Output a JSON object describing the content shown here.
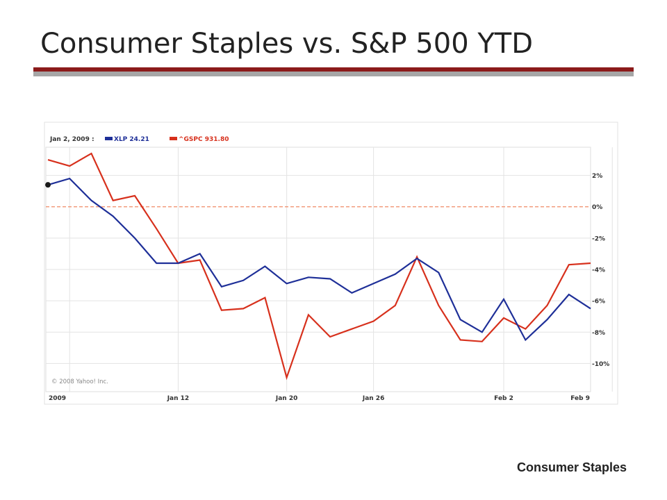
{
  "slide": {
    "title": "Consumer Staples vs. S&P 500 YTD",
    "footer": "Consumer Staples"
  },
  "colors": {
    "xlp": "#1e2f98",
    "gspc": "#d7301c",
    "title_rule": "#8b1a1a",
    "title_rule_shadow": "#a6a6a6",
    "zero_line": "#f08a66"
  },
  "chart_data": {
    "type": "line",
    "legend_date": "Jan 2, 2009 :",
    "legend_position": "top-left",
    "copyright": "© 2008 Yahoo! Inc.",
    "grid": true,
    "ylim": [
      -11.8,
      3.8
    ],
    "yticks": [
      2,
      0,
      -2,
      -4,
      -6,
      -8,
      -10
    ],
    "ytick_labels": [
      "2%",
      "0%",
      "-2%",
      "-4%",
      "-6%",
      "-8%",
      "-10%"
    ],
    "x_tick_labels": [
      {
        "index": 0,
        "label": "2009"
      },
      {
        "index": 6,
        "label": "Jan 12"
      },
      {
        "index": 11,
        "label": "Jan 20"
      },
      {
        "index": 15,
        "label": "Jan 26"
      },
      {
        "index": 21,
        "label": "Feb 2"
      },
      {
        "index": 26,
        "label": "Feb 9"
      }
    ],
    "reference_line": 0,
    "series": [
      {
        "name": "XLP 24.21",
        "values": [
          1.4,
          1.8,
          0.4,
          -0.6,
          -2.0,
          -3.6,
          -3.6,
          -3.0,
          -5.1,
          -4.7,
          -3.8,
          -4.9,
          -4.5,
          -4.6,
          -5.5,
          -4.9,
          -4.3,
          -3.3,
          -4.2,
          -7.2,
          -8.0,
          -5.9,
          -8.5,
          -7.2,
          -5.6,
          -6.5
        ]
      },
      {
        "name": "^GSPC 931.80",
        "values": [
          3.0,
          2.6,
          3.4,
          0.4,
          0.7,
          -1.4,
          -3.6,
          -3.4,
          -6.6,
          -6.5,
          -5.8,
          -10.9,
          -6.9,
          -8.3,
          -7.8,
          -7.3,
          -6.3,
          -3.2,
          -6.3,
          -8.5,
          -8.6,
          -7.1,
          -7.8,
          -6.3,
          -3.7,
          -3.6
        ]
      }
    ]
  }
}
